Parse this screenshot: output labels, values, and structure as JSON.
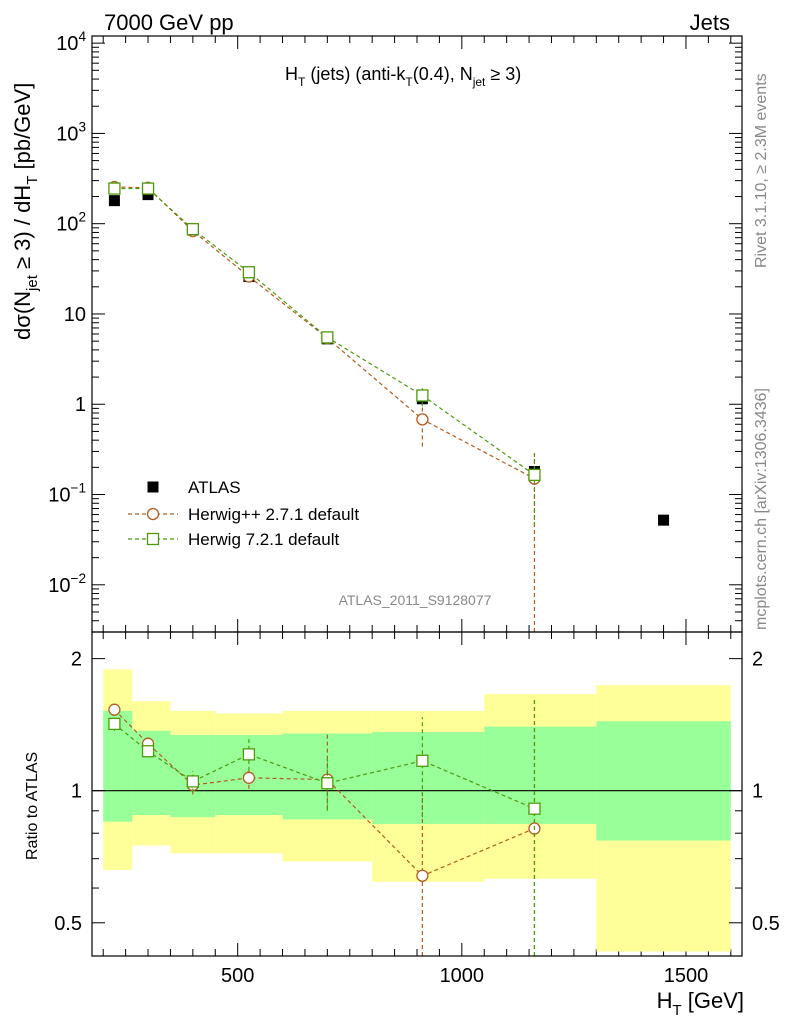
{
  "header": {
    "energy": "7000 GeV pp",
    "category": "Jets",
    "rivet": "Rivet 3.1.10, ≥ 2.3M events",
    "mcplots": "mcplots.cern.ch [arXiv:1306.3436]",
    "analysis": "ATLAS_2011_S9128077"
  },
  "chart_data": [
    {
      "type": "scatter",
      "panel": "main",
      "title": "H_T (jets) (anti-k_T(0.4), N_jet ≥ 3)",
      "title_parts": {
        "a": "H",
        "b": "T",
        "c": " (jets) (anti-k",
        "d": "T",
        "e": "(0.4), N",
        "f": "jet",
        "g": " ≥ 3)"
      },
      "ylabel_parts": {
        "a": "dσ(N",
        "b": "jet",
        "c": " ≥ 3) / dH",
        "d": "T",
        "e": " [pb/GeV]"
      },
      "yscale": "log",
      "ylim": [
        0.003,
        12000
      ],
      "xlim": [
        175,
        1625
      ],
      "ytick_labels": [
        {
          "value": 0.01,
          "mant": "10",
          "exp": "−2"
        },
        {
          "value": 0.1,
          "mant": "10",
          "exp": "−1"
        },
        {
          "value": 1,
          "mant": "1",
          "exp": ""
        },
        {
          "value": 10,
          "mant": "10",
          "exp": ""
        },
        {
          "value": 100,
          "mant": "10",
          "exp": "2"
        },
        {
          "value": 1000,
          "mant": "10",
          "exp": "3"
        },
        {
          "value": 10000,
          "mant": "10",
          "exp": "4"
        }
      ],
      "legend_position": "lower-left",
      "series": [
        {
          "name": "ATLAS",
          "color": "#000000",
          "marker": "filled-square",
          "x": [
            225,
            300,
            400,
            525,
            700,
            912,
            1162,
            1450
          ],
          "y": [
            180,
            210,
            85,
            26,
            5.3,
            1.15,
            0.18,
            0.052
          ],
          "err": [
            0,
            0,
            0,
            0,
            0,
            0,
            0,
            0
          ]
        },
        {
          "name": "Herwig++ 2.7.1 default",
          "color": "#b35c1e",
          "marker": "open-circle",
          "linestyle": "dashed",
          "x": [
            225,
            300,
            400,
            525,
            700,
            912,
            1162
          ],
          "y": [
            255,
            250,
            83,
            26,
            5.4,
            0.68,
            0.15
          ],
          "err_lo": [
            20,
            15,
            5,
            2,
            0.6,
            0.34,
            0.148
          ],
          "err_hi": [
            20,
            15,
            5,
            2,
            0.6,
            0.34,
            0.148
          ]
        },
        {
          "name": "Herwig 7.2.1 default",
          "color": "#4d9a0d",
          "marker": "open-square",
          "linestyle": "dashed",
          "x": [
            225,
            300,
            400,
            525,
            700,
            912,
            1162
          ],
          "y": [
            245,
            245,
            87,
            29,
            5.5,
            1.25,
            0.165
          ],
          "err_lo": [
            15,
            12,
            5,
            2.5,
            0.9,
            0.3,
            0.12
          ],
          "err_hi": [
            15,
            12,
            5,
            2.5,
            0.9,
            0.3,
            0.12
          ]
        }
      ]
    },
    {
      "type": "scatter",
      "panel": "ratio",
      "ylabel": "Ratio to ATLAS",
      "yscale": "log",
      "ylim": [
        0.42,
        2.3
      ],
      "xlim": [
        175,
        1625
      ],
      "xlabel_parts": {
        "a": "H",
        "b": "T",
        "c": " [GeV]"
      },
      "xtick_labels": [
        {
          "value": 500,
          "label": "500"
        },
        {
          "value": 1000,
          "label": "1000"
        },
        {
          "value": 1500,
          "label": "1500"
        }
      ],
      "ytick_labels": [
        {
          "value": 0.5,
          "label": "0.5"
        },
        {
          "value": 1,
          "label": "1"
        },
        {
          "value": 2,
          "label": "2"
        }
      ],
      "uncertainty_bins": [
        {
          "x0": 200,
          "x1": 265,
          "stat_lo": 0.85,
          "stat_hi": 1.52,
          "tot_lo": 0.66,
          "tot_hi": 1.89
        },
        {
          "x0": 265,
          "x1": 350,
          "stat_lo": 0.88,
          "stat_hi": 1.37,
          "tot_lo": 0.75,
          "tot_hi": 1.6
        },
        {
          "x0": 350,
          "x1": 450,
          "stat_lo": 0.87,
          "stat_hi": 1.34,
          "tot_lo": 0.72,
          "tot_hi": 1.52
        },
        {
          "x0": 450,
          "x1": 600,
          "stat_lo": 0.88,
          "stat_hi": 1.34,
          "tot_lo": 0.72,
          "tot_hi": 1.5
        },
        {
          "x0": 600,
          "x1": 800,
          "stat_lo": 0.86,
          "stat_hi": 1.35,
          "tot_lo": 0.69,
          "tot_hi": 1.52
        },
        {
          "x0": 800,
          "x1": 1050,
          "stat_lo": 0.84,
          "stat_hi": 1.36,
          "tot_lo": 0.62,
          "tot_hi": 1.52
        },
        {
          "x0": 1050,
          "x1": 1300,
          "stat_lo": 0.84,
          "stat_hi": 1.4,
          "tot_lo": 0.63,
          "tot_hi": 1.66
        },
        {
          "x0": 1300,
          "x1": 1600,
          "stat_lo": 0.77,
          "stat_hi": 1.44,
          "tot_lo": 0.43,
          "tot_hi": 1.74
        }
      ],
      "series": [
        {
          "name": "Herwig++ 2.7.1 default",
          "color": "#b35c1e",
          "marker": "open-circle",
          "linestyle": "dashed",
          "x": [
            225,
            300,
            400,
            525,
            700,
            912,
            1162
          ],
          "y": [
            1.53,
            1.28,
            1.03,
            1.07,
            1.06,
            0.64,
            0.82
          ],
          "err_lo": [
            0.05,
            0.04,
            0.05,
            0.06,
            0.15,
            0.3,
            0.8
          ],
          "err_hi": [
            0.05,
            0.04,
            0.05,
            0.06,
            0.3,
            0.35,
            0.8
          ]
        },
        {
          "name": "Herwig 7.2.1 default",
          "color": "#4d9a0d",
          "marker": "open-square",
          "linestyle": "dashed",
          "x": [
            225,
            300,
            400,
            525,
            700,
            912,
            1162
          ],
          "y": [
            1.42,
            1.23,
            1.05,
            1.21,
            1.04,
            1.17,
            0.91
          ],
          "err_lo": [
            0.05,
            0.04,
            0.06,
            0.1,
            0.14,
            0.3,
            0.7
          ],
          "err_hi": [
            0.05,
            0.04,
            0.06,
            0.1,
            0.14,
            0.3,
            0.7
          ]
        }
      ]
    }
  ]
}
